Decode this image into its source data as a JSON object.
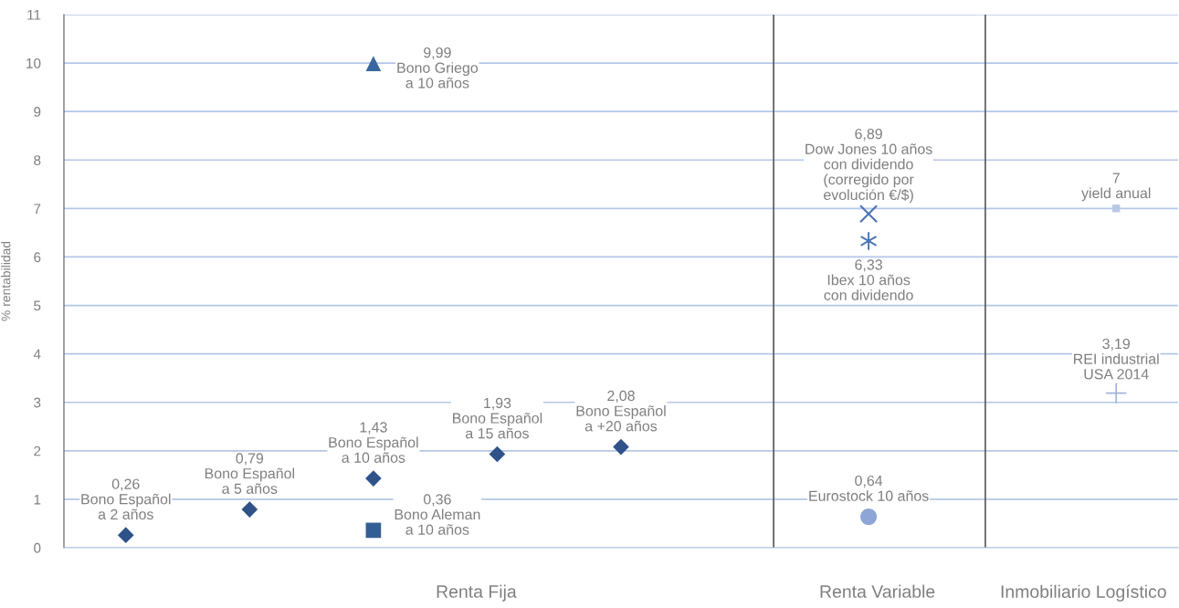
{
  "chart_data": {
    "type": "scatter",
    "ylabel": "% rentabilidad",
    "ylim": [
      0,
      11
    ],
    "yticks": [
      0,
      1,
      2,
      3,
      4,
      5,
      6,
      7,
      8,
      9,
      10,
      11
    ],
    "categories": [
      null,
      null,
      null,
      null,
      null,
      null,
      null,
      null,
      null
    ],
    "grid": "y",
    "series": [
      {
        "marker": "diamond",
        "color": "#2f5289",
        "values": [
          0.26,
          0.79,
          1.43,
          1.93,
          2.08,
          null,
          null,
          null,
          null
        ],
        "value_labels": [
          "0,26\nBono Español\na 2 años",
          "0,79\nBono Español\na 5 años",
          "1,43\nBono Español\na 10 años",
          "1,93\nBono Español\na 15 años",
          "2,08\nBono Español\na +20 años",
          null,
          null,
          null,
          null
        ]
      },
      {
        "marker": "square",
        "color": "#335e94",
        "values": [
          null,
          null,
          0.36,
          null,
          null,
          null,
          null,
          null,
          null
        ],
        "value_labels": [
          null,
          null,
          "0,36\nBono Aleman\na 10 años",
          null,
          null,
          null,
          null,
          null,
          null
        ]
      },
      {
        "marker": "triangle",
        "color": "#3a67a0",
        "values": [
          null,
          null,
          9.99,
          null,
          null,
          null,
          null,
          null,
          null
        ],
        "value_labels": [
          null,
          null,
          "9,99\nBono Griego\na 10 años",
          null,
          null,
          null,
          null,
          null,
          null
        ]
      },
      {
        "marker": "cross",
        "color": "#4a74b8",
        "values": [
          null,
          null,
          null,
          null,
          null,
          null,
          6.89,
          null,
          null
        ],
        "value_labels": [
          null,
          null,
          null,
          null,
          null,
          null,
          "6,89\nDow Jones 10 años\ncon dividendo\n(corregido por\nevolución €/$)",
          null,
          null
        ]
      },
      {
        "marker": "cross",
        "color": "#4a74b8",
        "values": [
          null,
          null,
          null,
          null,
          null,
          null,
          6.33,
          null,
          null
        ],
        "value_labels": [
          null,
          null,
          null,
          null,
          null,
          null,
          "6,33\nIbex 10 años\ncon dividendo",
          null,
          null
        ]
      },
      {
        "marker": "circle",
        "color": "#8ea6d6",
        "values": [
          null,
          null,
          null,
          null,
          null,
          null,
          0.64,
          null,
          null
        ],
        "value_labels": [
          null,
          null,
          null,
          null,
          null,
          null,
          "0,64\nEurostock 10 años",
          null,
          null
        ]
      },
      {
        "marker": "square",
        "color": "#b8c8e4",
        "values": [
          null,
          null,
          null,
          null,
          null,
          null,
          null,
          null,
          7
        ],
        "value_labels": [
          null,
          null,
          null,
          null,
          null,
          null,
          null,
          null,
          "7\nyield anual"
        ]
      },
      {
        "marker": "cross",
        "color": "#9fb4da",
        "values": [
          null,
          null,
          null,
          null,
          null,
          null,
          null,
          null,
          3.19
        ],
        "value_labels": [
          null,
          null,
          null,
          null,
          null,
          null,
          null,
          null,
          "3,19\nREI industrial\nUSA 2014"
        ]
      }
    ],
    "annotations": [
      "Renta Fija",
      "Renta Variable",
      "Inmobiliario Logístico"
    ]
  }
}
